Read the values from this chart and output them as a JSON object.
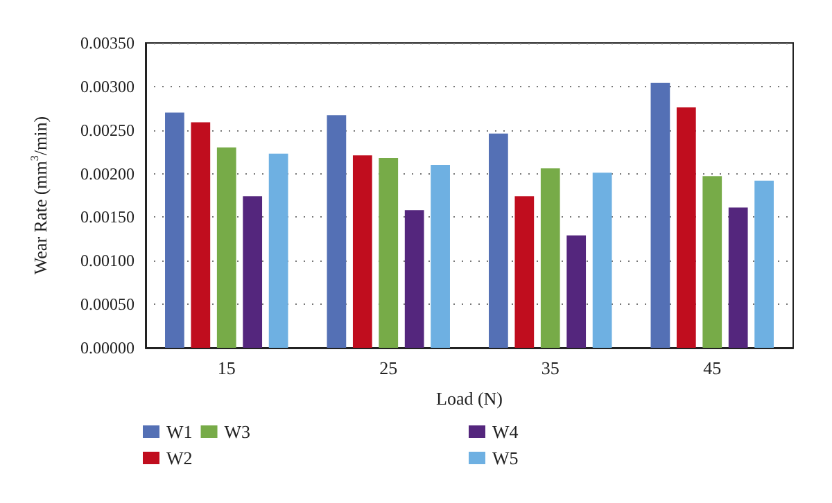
{
  "chart_data": {
    "type": "bar",
    "xlabel": "Load (N)",
    "ylabel": "Wear Rate (mm$^{3}$/min)",
    "categories": [
      "15",
      "25",
      "35",
      "45"
    ],
    "series": [
      {
        "name": "W1",
        "color": "#5470b5",
        "values": [
          0.0027,
          0.00267,
          0.00246,
          0.00304
        ]
      },
      {
        "name": "W2",
        "color": "#c00d1e",
        "values": [
          0.00259,
          0.00221,
          0.00174,
          0.00276
        ]
      },
      {
        "name": "W3",
        "color": "#77ab48",
        "values": [
          0.0023,
          0.00218,
          0.00206,
          0.00197
        ]
      },
      {
        "name": "W4",
        "color": "#54267d",
        "values": [
          0.00174,
          0.00158,
          0.00129,
          0.00161
        ]
      },
      {
        "name": "W5",
        "color": "#6eb0e2",
        "values": [
          0.00223,
          0.0021,
          0.00201,
          0.00192
        ]
      }
    ],
    "ylim": [
      0,
      0.0035
    ],
    "yticks": [
      {
        "value": 0,
        "label": "0.00000"
      },
      {
        "value": 0.0005,
        "label": "0.00050"
      },
      {
        "value": 0.001,
        "label": "0.00100"
      },
      {
        "value": 0.0015,
        "label": "0.00150"
      },
      {
        "value": 0.002,
        "label": "0.00200"
      },
      {
        "value": 0.0025,
        "label": "0.00250"
      },
      {
        "value": 0.003,
        "label": "0.00300"
      },
      {
        "value": 0.0035,
        "label": "0.00350"
      }
    ],
    "grid": "y",
    "legend": "bottom"
  }
}
